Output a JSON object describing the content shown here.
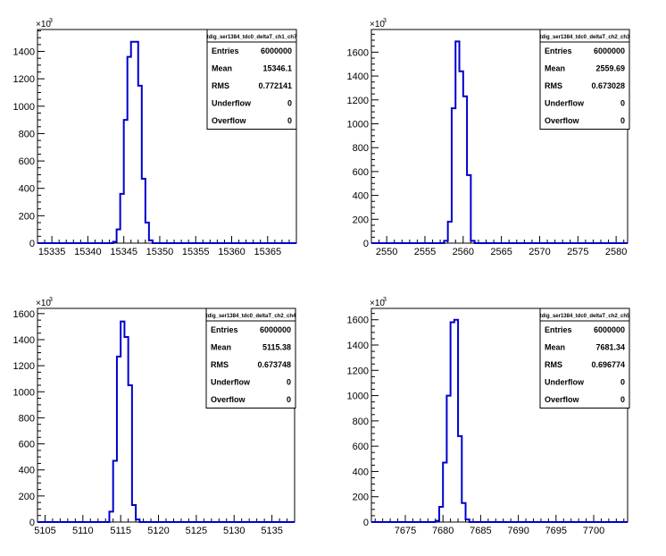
{
  "chart_data": [
    {
      "type": "histogram",
      "y_multiplier_label": "×10",
      "y_multiplier_exp": "3",
      "xlim": [
        15333,
        15369
      ],
      "x_ticks": [
        15335,
        15340,
        15345,
        15350,
        15355,
        15360,
        15365
      ],
      "ylim": [
        0,
        1560
      ],
      "y_ticks": [
        0,
        200,
        400,
        600,
        800,
        1000,
        1200,
        1400
      ],
      "bin_width": 0.5,
      "bin_edges_start": 15343.5,
      "values": [
        10,
        100,
        360,
        900,
        1360,
        1470,
        1470,
        1150,
        470,
        150,
        20
      ],
      "stats": {
        "name": "tdig_ser1384_tdc0_deltaT_ch1_ch7",
        "rows": [
          {
            "label": "Entries",
            "value": "6000000"
          },
          {
            "label": "Mean",
            "value": "15346.1"
          },
          {
            "label": "RMS",
            "value": "0.772141"
          },
          {
            "label": "Underflow",
            "value": "0"
          },
          {
            "label": "Overflow",
            "value": "0"
          }
        ]
      }
    },
    {
      "type": "histogram",
      "y_multiplier_label": "×10",
      "y_multiplier_exp": "3",
      "xlim": [
        2548,
        2581.5
      ],
      "x_ticks": [
        2550,
        2555,
        2560,
        2565,
        2570,
        2575,
        2580
      ],
      "ylim": [
        0,
        1790
      ],
      "y_ticks": [
        0,
        200,
        400,
        600,
        800,
        1000,
        1200,
        1400,
        1600
      ],
      "bin_width": 0.5,
      "bin_edges_start": 2557.5,
      "values": [
        20,
        180,
        1130,
        1690,
        1440,
        1230,
        570,
        20
      ],
      "stats": {
        "name": "tdig_ser1384_tdc0_deltaT_ch2_ch3",
        "rows": [
          {
            "label": "Entries",
            "value": "6000000"
          },
          {
            "label": "Mean",
            "value": "2559.69"
          },
          {
            "label": "RMS",
            "value": "0.673028"
          },
          {
            "label": "Underflow",
            "value": "0"
          },
          {
            "label": "Overflow",
            "value": "0"
          }
        ]
      }
    },
    {
      "type": "histogram",
      "y_multiplier_label": "×10",
      "y_multiplier_exp": "3",
      "xlim": [
        5104,
        5138
      ],
      "x_ticks": [
        5105,
        5110,
        5115,
        5120,
        5125,
        5130,
        5135
      ],
      "ylim": [
        0,
        1640
      ],
      "y_ticks": [
        0,
        200,
        400,
        600,
        800,
        1000,
        1200,
        1400,
        1600
      ],
      "bin_width": 0.5,
      "bin_edges_start": 5113.5,
      "values": [
        80,
        470,
        1270,
        1540,
        1420,
        1050,
        130,
        20
      ],
      "stats": {
        "name": "tdig_ser1384_tdc0_deltaT_ch2_ch4",
        "rows": [
          {
            "label": "Entries",
            "value": "6000000"
          },
          {
            "label": "Mean",
            "value": "5115.38"
          },
          {
            "label": "RMS",
            "value": "0.673748"
          },
          {
            "label": "Underflow",
            "value": "0"
          },
          {
            "label": "Overflow",
            "value": "0"
          }
        ]
      }
    },
    {
      "type": "histogram",
      "y_multiplier_label": "×10",
      "y_multiplier_exp": "3",
      "xlim": [
        7670.5,
        7704.5
      ],
      "x_ticks": [
        7675,
        7680,
        7685,
        7690,
        7695,
        7700
      ],
      "ylim": [
        0,
        1690
      ],
      "y_ticks": [
        0,
        200,
        400,
        600,
        800,
        1000,
        1200,
        1400,
        1600
      ],
      "bin_width": 0.5,
      "bin_edges_start": 7679.0,
      "values": [
        10,
        120,
        470,
        1000,
        1580,
        1600,
        680,
        150,
        20
      ],
      "stats": {
        "name": "tdig_ser1384_tdc0_deltaT_ch2_ch5",
        "rows": [
          {
            "label": "Entries",
            "value": "6000000"
          },
          {
            "label": "Mean",
            "value": "7681.34"
          },
          {
            "label": "RMS",
            "value": "0.696774"
          },
          {
            "label": "Underflow",
            "value": "0"
          },
          {
            "label": "Overflow",
            "value": "0"
          }
        ]
      }
    }
  ]
}
